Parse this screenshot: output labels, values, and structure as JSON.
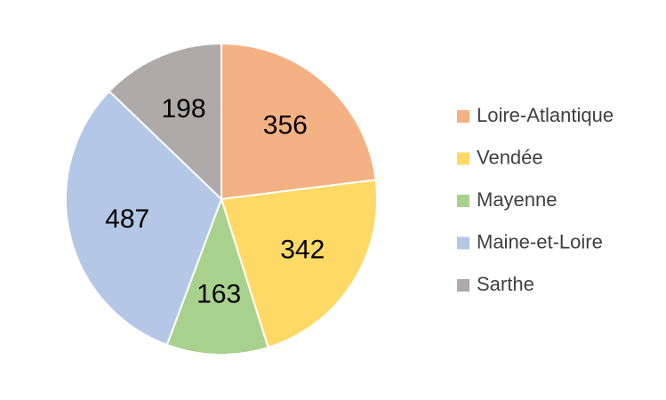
{
  "chart_data": {
    "type": "pie",
    "categories": [
      "Loire-Atlantique",
      "Vendée",
      "Mayenne",
      "Maine-et-Loire",
      "Sarthe"
    ],
    "values": [
      356,
      342,
      163,
      487,
      198
    ],
    "colors": [
      "#F4B183",
      "#FFD966",
      "#A9D18E",
      "#B4C7E7",
      "#AEAAAA"
    ],
    "legend": "right"
  }
}
